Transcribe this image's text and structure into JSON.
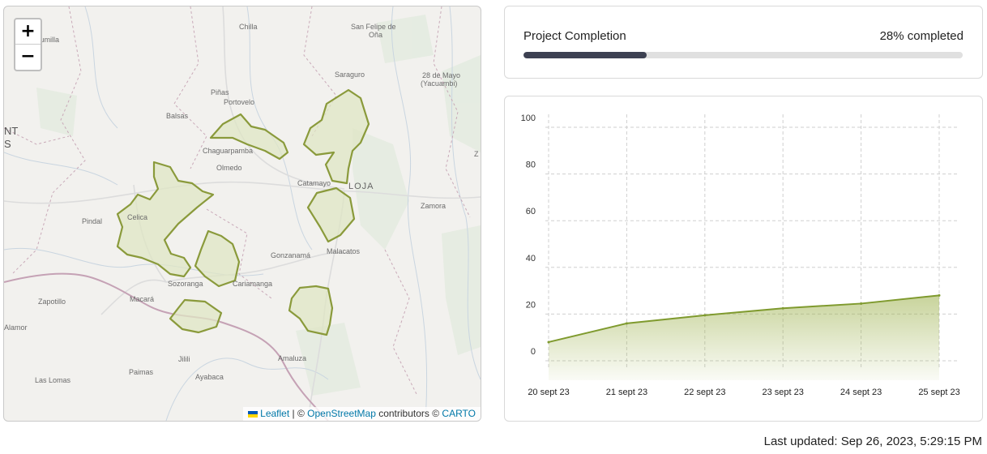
{
  "map": {
    "zoom_in": "+",
    "zoom_out": "−",
    "attribution": {
      "leaflet": "Leaflet",
      "separator": " | © ",
      "osm": "OpenStreetMap",
      "contrib": " contributors © ",
      "carto": "CARTO"
    },
    "labels": [
      {
        "text": "Chilla",
        "kind": "town"
      },
      {
        "text": "San Felipe de",
        "kind": "town"
      },
      {
        "text": "Oña",
        "kind": "town"
      },
      {
        "text": "Cumilla",
        "kind": "town"
      },
      {
        "text": "Saraguro",
        "kind": "town"
      },
      {
        "text": "28 de Mayo",
        "kind": "town"
      },
      {
        "text": "(Yacuambi)",
        "kind": "town"
      },
      {
        "text": "Piñas",
        "kind": "town"
      },
      {
        "text": "Portovelo",
        "kind": "town"
      },
      {
        "text": "Balsas",
        "kind": "town"
      },
      {
        "text": "NT",
        "kind": "big"
      },
      {
        "text": "S",
        "kind": "big"
      },
      {
        "text": "Chaguarpamba",
        "kind": "town"
      },
      {
        "text": "Olmedo",
        "kind": "town"
      },
      {
        "text": "Catamayo",
        "kind": "town"
      },
      {
        "text": "LOJA",
        "kind": "city"
      },
      {
        "text": "Zamora",
        "kind": "town"
      },
      {
        "text": "Celica",
        "kind": "town"
      },
      {
        "text": "Pindal",
        "kind": "town"
      },
      {
        "text": "Gonzanamá",
        "kind": "town"
      },
      {
        "text": "Malacatos",
        "kind": "town"
      },
      {
        "text": "Sozoranga",
        "kind": "town"
      },
      {
        "text": "Cariamanga",
        "kind": "town"
      },
      {
        "text": "Zapotillo",
        "kind": "town"
      },
      {
        "text": "Macará",
        "kind": "town"
      },
      {
        "text": "Alamor",
        "kind": "town"
      },
      {
        "text": "Jilili",
        "kind": "town"
      },
      {
        "text": "Amaluza",
        "kind": "town"
      },
      {
        "text": "Las Lomas",
        "kind": "town"
      },
      {
        "text": "Paimas",
        "kind": "town"
      },
      {
        "text": "Ayabaca",
        "kind": "town"
      },
      {
        "text": "Z",
        "kind": "town"
      }
    ],
    "region_color": "#8a9a3b",
    "region_fill": "#dfe6c4"
  },
  "progress": {
    "title": "Project Completion",
    "value_label": "28% completed",
    "percent": 28,
    "fill_color": "#3d4152"
  },
  "chart_data": {
    "type": "area",
    "x": [
      "20 sept 23",
      "21 sept 23",
      "22 sept 23",
      "23 sept 23",
      "24 sept 23",
      "25 sept 23"
    ],
    "series": [
      {
        "values": [
          8,
          16,
          19.5,
          22.5,
          24.5,
          28
        ],
        "color": "#7f9a2e"
      }
    ],
    "ylim": [
      0,
      100
    ],
    "yticks": [
      0,
      20,
      40,
      60,
      80,
      100
    ],
    "grid": true
  },
  "footer": {
    "last_updated": "Last updated: Sep 26, 2023, 5:29:15 PM"
  }
}
